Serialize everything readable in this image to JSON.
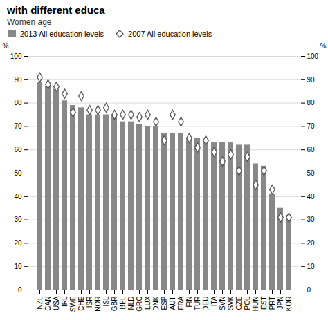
{
  "chart_data": {
    "type": "bar",
    "title": "with different educa",
    "subtitle": "Women age",
    "categories": [
      "NZL",
      "CAN",
      "USA",
      "IRL",
      "SWE",
      "CHE",
      "ISR",
      "NOR",
      "ISL",
      "GBR",
      "BEL",
      "NLD",
      "GRC",
      "LUX",
      "DNK",
      "ESP",
      "AUT",
      "FRA",
      "FIN",
      "TUR",
      "DEU",
      "ITA",
      "SVN",
      "SVK",
      "CZE",
      "POL",
      "HUN",
      "EST",
      "PRT",
      "JPN",
      "KOR"
    ],
    "series": [
      {
        "name": "2013 All education levels",
        "type": "bar",
        "color": "#888888",
        "values": [
          89,
          87,
          86,
          81,
          79,
          78,
          75,
          75,
          75,
          75,
          72,
          72,
          71,
          70,
          70,
          67,
          67,
          67,
          65,
          65,
          64,
          63,
          63,
          63,
          62,
          62,
          54,
          53,
          41,
          35,
          32
        ]
      },
      {
        "name": "2007 All education levels",
        "type": "scatter",
        "marker": "diamond",
        "color": "#555555",
        "values": [
          91,
          88,
          87,
          84,
          76,
          83,
          77,
          77,
          78,
          75,
          75,
          75,
          74,
          75,
          72,
          64,
          75,
          72,
          65,
          61,
          64,
          59,
          55,
          58,
          51,
          57,
          45,
          51,
          43,
          31,
          31
        ]
      }
    ],
    "ylabel": "%",
    "y2label": "%",
    "ylim": [
      0,
      100
    ],
    "yticks": [
      0,
      10,
      20,
      30,
      40,
      50,
      60,
      70,
      80,
      90,
      100
    ],
    "y2lim": [
      0,
      100
    ],
    "y2ticks": [
      0,
      10,
      20,
      30,
      40,
      50,
      60,
      70,
      80,
      90,
      100
    ],
    "grid": true,
    "legend": "upper left"
  }
}
